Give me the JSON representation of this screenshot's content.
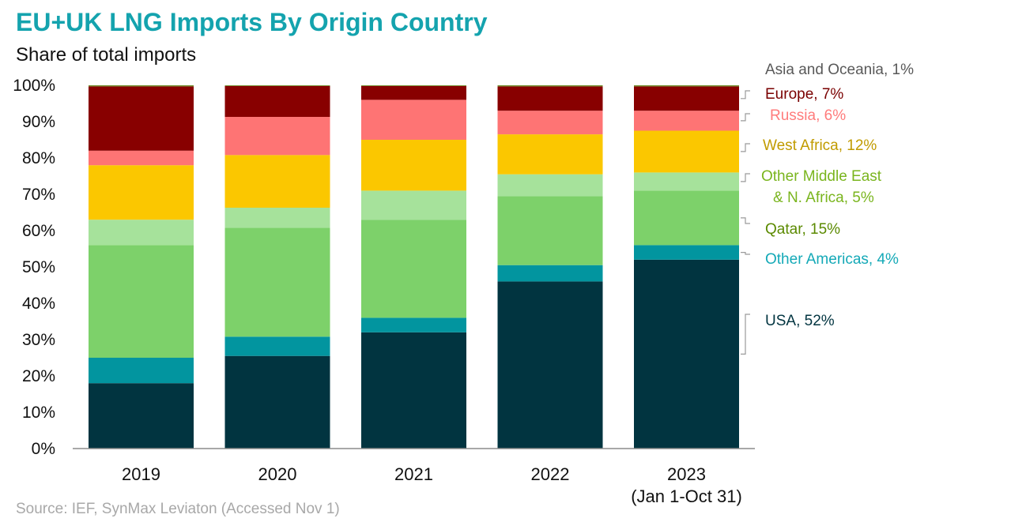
{
  "header": {
    "title": "EU+UK LNG Imports By Origin Country",
    "subtitle": "Share of total imports"
  },
  "footer": {
    "source": "Source: IEF, SynMax Leviaton  (Accessed Nov 1)"
  },
  "chart_data": {
    "type": "bar",
    "stacked": true,
    "title": "EU+UK LNG Imports By Origin Country",
    "subtitle": "Share of total imports",
    "xlabel": "",
    "ylabel": "",
    "ylim": [
      0,
      100
    ],
    "yticks": [
      "0%",
      "10%",
      "20%",
      "30%",
      "40%",
      "50%",
      "60%",
      "70%",
      "80%",
      "90%",
      "100%"
    ],
    "categories": [
      {
        "line1": "2019",
        "line2": ""
      },
      {
        "line1": "2020",
        "line2": ""
      },
      {
        "line1": "2021",
        "line2": ""
      },
      {
        "line1": "2022",
        "line2": ""
      },
      {
        "line1": "2023",
        "line2": "(Jan 1-Oct 31)"
      }
    ],
    "grid": false,
    "legend": "right-side direct labels",
    "series": [
      {
        "label_line1": "USA, 52%",
        "label_line2": "",
        "color": "#013440",
        "label_color": "#013440",
        "values": [
          18,
          25.5,
          32,
          46,
          52
        ]
      },
      {
        "label_line1": "Other Americas, 4%",
        "label_line2": "",
        "color": "#02959f",
        "label_color": "#14a9b7",
        "values": [
          7,
          5.3,
          4,
          4.5,
          4
        ]
      },
      {
        "label_line1": "Qatar, 15%",
        "label_line2": "",
        "color": "#7dd16a",
        "label_color": "#5b8a00",
        "values": [
          31,
          30,
          27,
          19,
          15
        ]
      },
      {
        "label_line1": "Other Middle East",
        "label_line2": "& N. Africa, 5%",
        "color": "#a6e29b",
        "label_color": "#7ab51e",
        "values": [
          7,
          5.5,
          8,
          6,
          5
        ]
      },
      {
        "label_line1": "West Africa, 12%",
        "label_line2": "",
        "color": "#fbc700",
        "label_color": "#c19b00",
        "values": [
          15,
          14.5,
          14,
          11,
          11.5
        ]
      },
      {
        "label_line1": "Russia, 6%",
        "label_line2": "",
        "color": "#fe7474",
        "label_color": "#ff7c7c",
        "values": [
          4,
          10.5,
          11,
          6.5,
          5.5
        ]
      },
      {
        "label_line1": "Europe, 7%",
        "label_line2": "",
        "color": "#880000",
        "label_color": "#7a0000",
        "values": [
          17.7,
          8.5,
          3.8,
          6.7,
          6.7
        ]
      },
      {
        "label_line1": "Asia and Oceania, 1%",
        "label_line2": "",
        "color": "#6f8f2a",
        "label_color": "#595959",
        "values": [
          0.3,
          0.2,
          0.2,
          0.3,
          0.3
        ]
      }
    ]
  }
}
